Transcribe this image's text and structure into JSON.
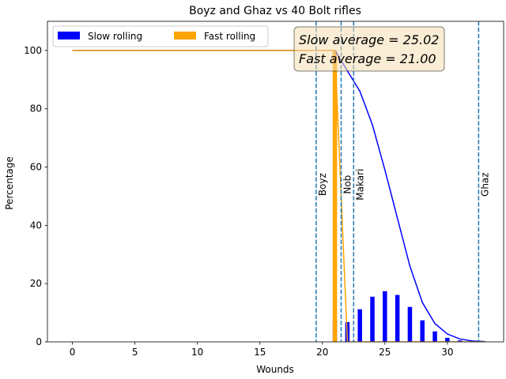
{
  "chart_data": {
    "type": "bar",
    "title": "Boyz and Ghaz vs 40 Bolt rifles",
    "xlabel": "Wounds",
    "ylabel": "Percentage",
    "xlim": [
      -2,
      34.5
    ],
    "ylim": [
      0,
      110
    ],
    "xticks": [
      0,
      5,
      10,
      15,
      20,
      25,
      30
    ],
    "yticks": [
      0,
      20,
      40,
      60,
      80,
      100
    ],
    "legend": {
      "position": "top-left",
      "entries": [
        {
          "label": "Slow rolling",
          "color": "#0000ff"
        },
        {
          "label": "Fast rolling",
          "color": "#ffa500"
        }
      ]
    },
    "stats_box": {
      "position": "top-right",
      "lines": [
        "Slow average = 25.02",
        "Fast average = 21.00"
      ]
    },
    "series": [
      {
        "name": "Slow rolling",
        "kind": "bar",
        "color": "#0000ff",
        "x": [
          21,
          22,
          23,
          24,
          25,
          26,
          27,
          28,
          29,
          30,
          31,
          32,
          33
        ],
        "values": [
          7.2,
          6.8,
          11.2,
          15.5,
          17.4,
          16.1,
          12.0,
          7.4,
          3.6,
          1.4,
          0.5,
          0.2,
          0.1
        ]
      },
      {
        "name": "Fast rolling",
        "kind": "bar",
        "color": "#ffa500",
        "x": [
          21
        ],
        "values": [
          100
        ]
      },
      {
        "name": "Slow rolling cumulative",
        "kind": "line",
        "color": "#0000ff",
        "x": [
          0,
          20,
          21,
          22,
          23,
          24,
          25,
          26,
          27,
          28,
          29,
          30,
          31,
          32,
          33
        ],
        "values": [
          100,
          100,
          100,
          93,
          86,
          74.5,
          59,
          42.5,
          26,
          13.5,
          6.3,
          2.7,
          1.0,
          0.3,
          0.1
        ]
      },
      {
        "name": "Fast rolling cumulative",
        "kind": "line",
        "color": "#ffa500",
        "x": [
          0,
          21,
          22,
          33
        ],
        "values": [
          100,
          100,
          0,
          0
        ]
      }
    ],
    "reference_lines": [
      {
        "label": "Boyz",
        "x": 19.5
      },
      {
        "label": "Nob",
        "x": 21.5
      },
      {
        "label": "Makari",
        "x": 22.5
      },
      {
        "label": "Ghaz",
        "x": 32.5
      }
    ]
  }
}
